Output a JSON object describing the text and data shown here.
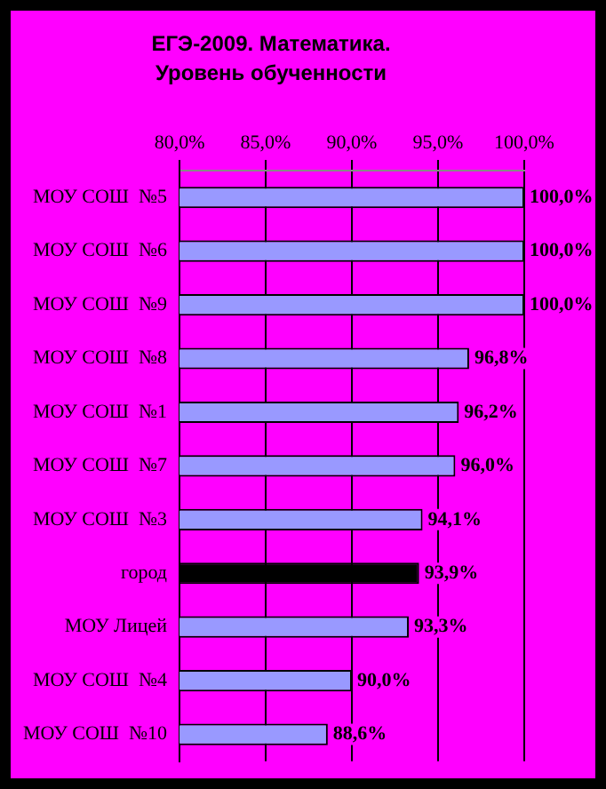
{
  "chart_data": {
    "type": "bar",
    "orientation": "horizontal",
    "title": "ЕГЭ-2009. Математика.",
    "subtitle": "Уровень обученности",
    "categories": [
      "МОУ СОШ  №5",
      "МОУ СОШ  №6",
      "МОУ СОШ  №9",
      "МОУ СОШ  №8",
      "МОУ СОШ  №1",
      "МОУ СОШ  №7",
      "МОУ СОШ  №3",
      "город",
      "МОУ Лицей",
      "МОУ СОШ  №4",
      "МОУ СОШ  №10"
    ],
    "values": [
      100,
      100,
      100,
      96.8,
      96.2,
      96,
      94.1,
      93.9,
      93.3,
      90,
      88.6
    ],
    "colors": [
      "#9999ff",
      "#9999ff",
      "#9999ff",
      "#9999ff",
      "#9999ff",
      "#9999ff",
      "#9999ff",
      "#000000",
      "#9999ff",
      "#9999ff",
      "#9999ff"
    ],
    "value_labels": [
      "100,0%",
      "100,0%",
      "100,0%",
      "96,8%",
      "96,2%",
      "96,0%",
      "94,1%",
      "93,9%",
      "93,3%",
      "90,0%",
      "88,6%"
    ],
    "xlim": [
      80,
      100
    ],
    "xticks": [
      {
        "value": 80,
        "label": "80,0%"
      },
      {
        "value": 85,
        "label": "85,0%"
      },
      {
        "value": 90,
        "label": "90,0%"
      },
      {
        "value": 95,
        "label": "95,0%"
      },
      {
        "value": 100,
        "label": "100,0%"
      }
    ],
    "grid": "x",
    "legend": false
  }
}
